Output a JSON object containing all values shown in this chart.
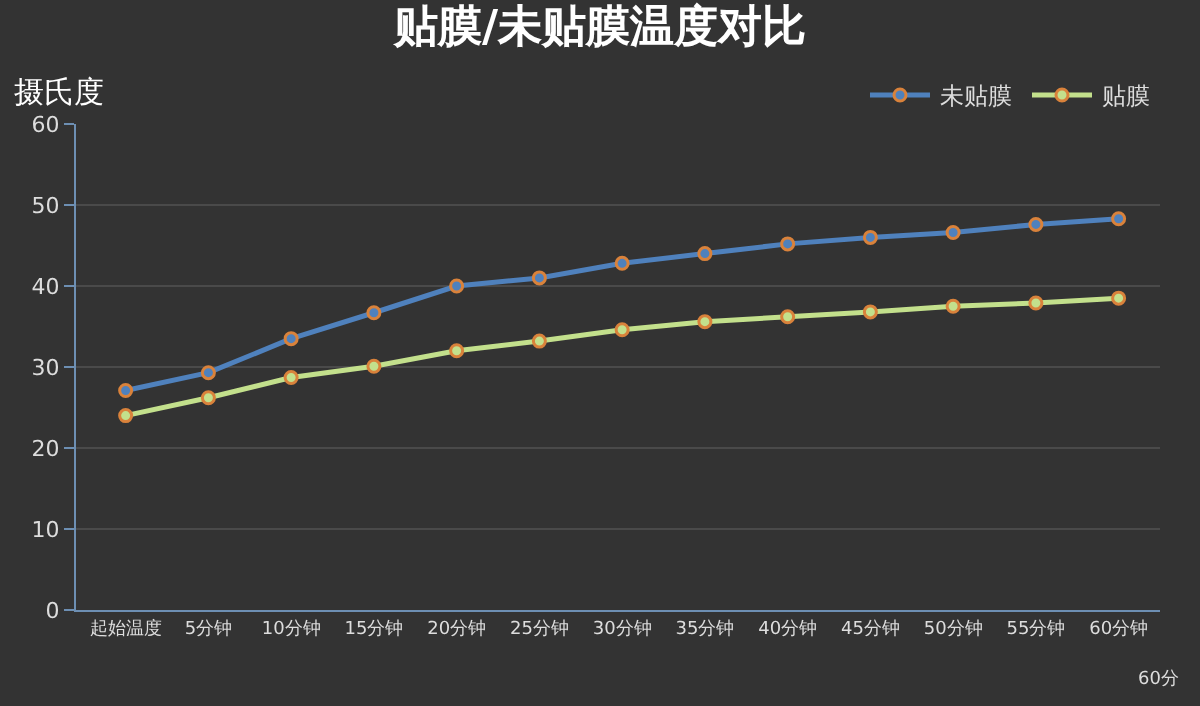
{
  "chart_data": {
    "type": "line",
    "title": "贴膜/未贴膜温度对比",
    "ylabel": "摄氏度",
    "categories": [
      "起始温度",
      "5分钟",
      "10分钟",
      "15分钟",
      "20分钟",
      "25分钟",
      "30分钟",
      "35分钟",
      "40分钟",
      "45分钟",
      "50分钟",
      "55分钟",
      "60分钟"
    ],
    "series": [
      {
        "name": "未贴膜",
        "color": "#4f81bd",
        "values": [
          27.1,
          29.3,
          33.5,
          36.7,
          40,
          41,
          42.8,
          44,
          45.2,
          46,
          46.6,
          47.6,
          48.3
        ]
      },
      {
        "name": "贴膜",
        "color": "#c3e08c",
        "values": [
          24,
          26.2,
          28.7,
          30.1,
          32,
          33.2,
          34.6,
          35.6,
          36.2,
          36.8,
          37.5,
          37.9,
          38.5
        ]
      }
    ],
    "ylim": [
      0,
      60
    ],
    "yticks": [
      0,
      10,
      20,
      30,
      40,
      50,
      60
    ],
    "grid": "y",
    "legend": "top right",
    "marker": "circle",
    "annotations": [
      "60分"
    ]
  }
}
